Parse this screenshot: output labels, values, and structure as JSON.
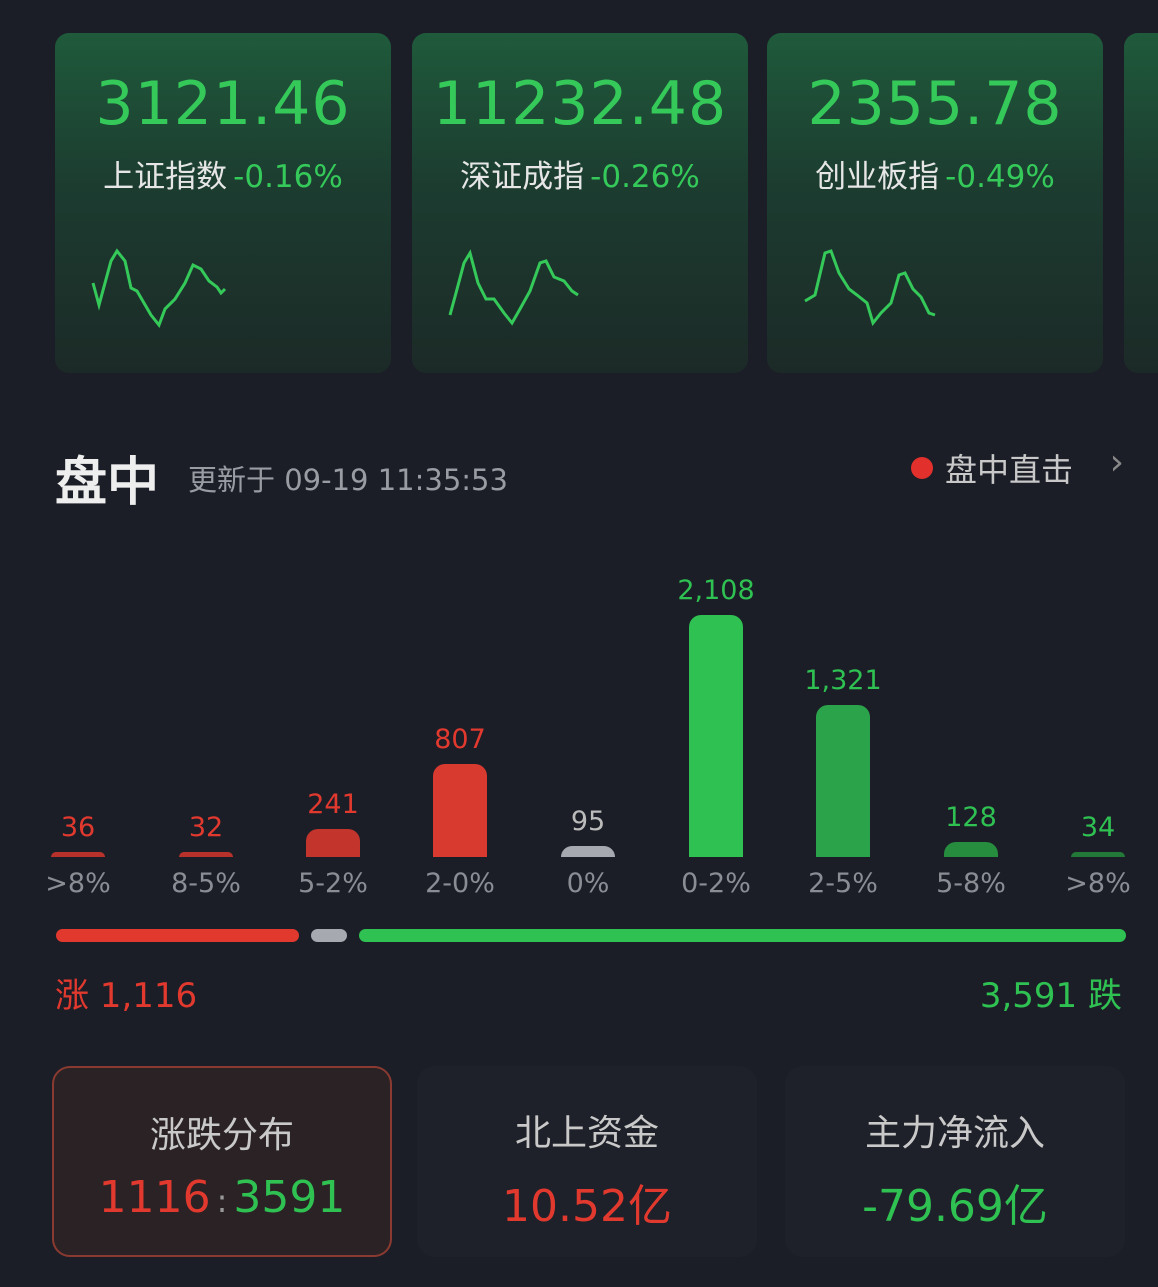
{
  "indices": [
    {
      "value": "3121.46",
      "name": "上证指数",
      "change": "-0.16%"
    },
    {
      "value": "11232.48",
      "name": "深证成指",
      "change": "-0.26%"
    },
    {
      "value": "2355.78",
      "name": "创业板指",
      "change": "-0.49%"
    }
  ],
  "section": {
    "title": "盘中",
    "updated": "更新于 09-19 11:35:53",
    "live_label": "盘中直击"
  },
  "chart_data": {
    "type": "bar",
    "categories": [
      ">8%",
      "8-5%",
      "5-2%",
      "2-0%",
      "0%",
      "0-2%",
      "2-5%",
      "5-8%",
      ">8%"
    ],
    "values": [
      36,
      32,
      241,
      807,
      95,
      2108,
      1321,
      128,
      34
    ],
    "value_labels": [
      "36",
      "32",
      "241",
      "807",
      "95",
      "2,108",
      "1,321",
      "128",
      "34"
    ],
    "colors": [
      "#b8322b",
      "#b8322b",
      "#c2342c",
      "#d93a30",
      "#a7a9b0",
      "#2fc152",
      "#2aa34a",
      "#268c3e",
      "#237a38"
    ]
  },
  "totals": {
    "up_label": "涨 1,116",
    "down_label": "3,591 跌",
    "up": 1116,
    "flat": 95,
    "down": 3591
  },
  "colors": {
    "up": "#e2392f",
    "down": "#2fc152",
    "flat": "#a7a9b0"
  },
  "boxes": [
    {
      "title": "涨跌分布",
      "up": "1116",
      "sep": ":",
      "down": "3591"
    },
    {
      "title": "北上资金",
      "value": "10.52亿"
    },
    {
      "title": "主力净流入",
      "value": "-79.69亿"
    }
  ]
}
